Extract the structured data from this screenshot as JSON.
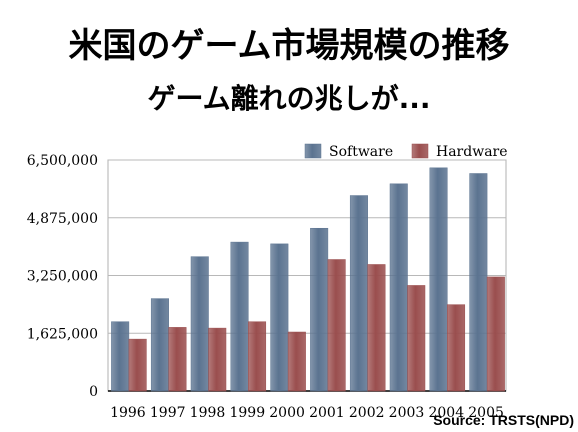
{
  "header": {
    "title": "米国のゲーム市場規模の推移",
    "subtitle": "ゲーム離れの兆しが..."
  },
  "source": "Source: TRSTS(NPD)",
  "chart_data": {
    "type": "bar",
    "title": "米国のゲーム市場規模の推移",
    "subtitle": "ゲーム離れの兆しが...",
    "xlabel": "",
    "ylabel": "",
    "categories": [
      "1996",
      "1997",
      "1998",
      "1999",
      "2000",
      "2001",
      "2002",
      "2003",
      "2004",
      "2005"
    ],
    "series": [
      {
        "name": "Software",
        "color": "#5b7390",
        "values": [
          1950000,
          2600000,
          3780000,
          4190000,
          4140000,
          4580000,
          5500000,
          5830000,
          6280000,
          6120000
        ]
      },
      {
        "name": "Hardware",
        "color": "#9a4e4e",
        "values": [
          1460000,
          1790000,
          1770000,
          1950000,
          1660000,
          3700000,
          3560000,
          2970000,
          2430000,
          3210000
        ]
      }
    ],
    "ylim": [
      0,
      6500000
    ],
    "yticks": [
      0,
      1625000,
      3250000,
      4875000,
      6500000
    ],
    "ytick_labels": [
      "0",
      "1,625,000",
      "3,250,000",
      "4,875,000",
      "6,500,000"
    ],
    "grid": true,
    "legend": "top-right"
  }
}
